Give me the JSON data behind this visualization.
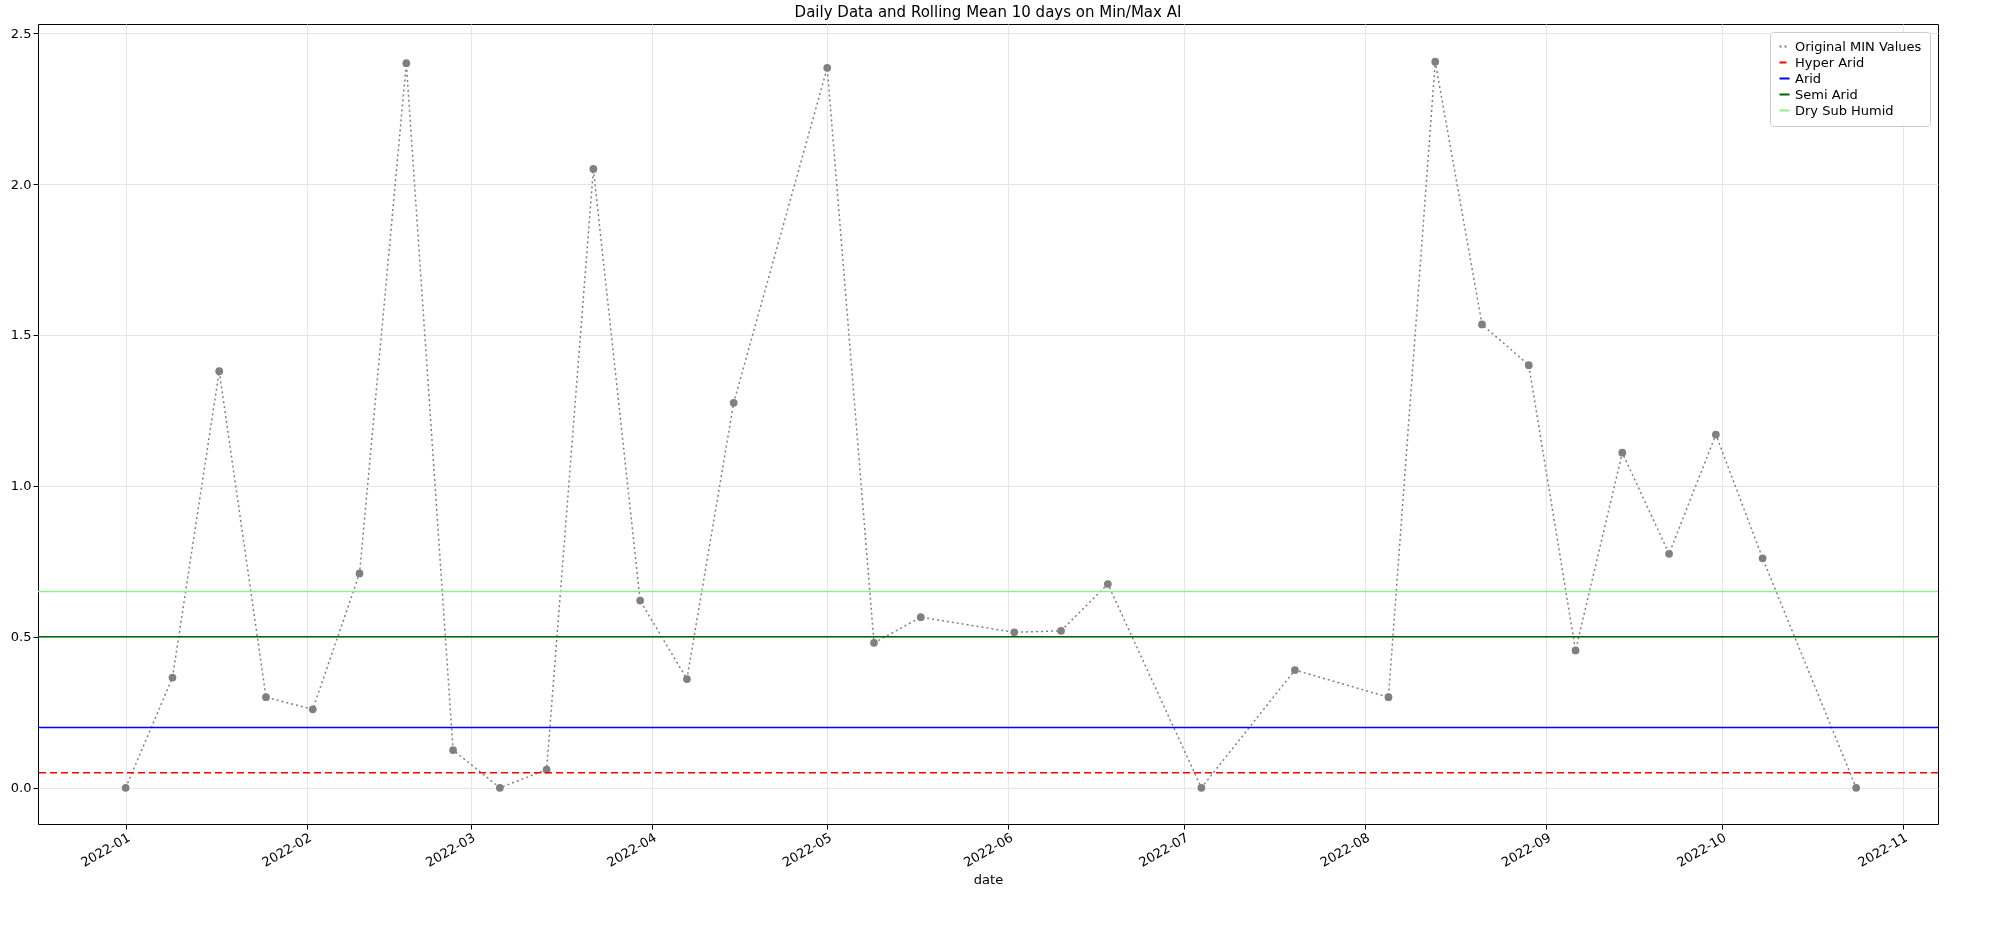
{
  "chart_data": {
    "type": "line",
    "title": "Daily Data and Rolling Mean 10 days on Min/Max AI",
    "xlabel": "date",
    "x": [
      "2022-01-01",
      "2022-01-09",
      "2022-01-17",
      "2022-01-25",
      "2022-02-02",
      "2022-02-10",
      "2022-02-18",
      "2022-02-26",
      "2022-03-06",
      "2022-03-14",
      "2022-03-22",
      "2022-03-30",
      "2022-04-07",
      "2022-04-15",
      "2022-05-01",
      "2022-05-09",
      "2022-05-17",
      "2022-06-02",
      "2022-06-10",
      "2022-06-18",
      "2022-07-04",
      "2022-07-20",
      "2022-08-05",
      "2022-08-13",
      "2022-08-21",
      "2022-08-29",
      "2022-09-06",
      "2022-09-14",
      "2022-09-22",
      "2022-09-30",
      "2022-10-08",
      "2022-10-24"
    ],
    "series": [
      {
        "name": "Original MIN Values",
        "color": "#808080",
        "values": [
          0,
          0.365,
          1.38,
          0.3,
          0.26,
          0.71,
          2.4,
          0.125,
          0,
          0.06,
          2.05,
          0.62,
          0.36,
          1.275,
          2.385,
          0.48,
          0.565,
          0.515,
          0.52,
          0.675,
          0,
          0.39,
          0.3,
          2.405,
          1.535,
          1.4,
          0.455,
          1.11,
          0.775,
          1.17,
          0.76,
          0
        ]
      }
    ],
    "marker": "circle",
    "line_style": "dotted",
    "ref_lines": [
      {
        "axis": "y",
        "value": 0.05,
        "label": "Hyper Arid",
        "color": "#ff0000",
        "line_style": "dashed"
      },
      {
        "axis": "y",
        "value": 0.2,
        "label": "Arid",
        "color": "#0000ff",
        "line_style": "solid"
      },
      {
        "axis": "y",
        "value": 0.5,
        "label": "Semi Arid",
        "color": "#006400",
        "line_style": "solid"
      },
      {
        "axis": "y",
        "value": 0.65,
        "label": "Dry Sub Humid",
        "color": "#90ee90",
        "line_style": "solid"
      }
    ],
    "xlim": [
      "2021-12-17",
      "2022-11-07"
    ],
    "xticks": [
      {
        "value": "2022-01",
        "label": "2022-01"
      },
      {
        "value": "2022-02",
        "label": "2022-02"
      },
      {
        "value": "2022-03",
        "label": "2022-03"
      },
      {
        "value": "2022-04",
        "label": "2022-04"
      },
      {
        "value": "2022-05",
        "label": "2022-05"
      },
      {
        "value": "2022-06",
        "label": "2022-06"
      },
      {
        "value": "2022-07",
        "label": "2022-07"
      },
      {
        "value": "2022-08",
        "label": "2022-08"
      },
      {
        "value": "2022-09",
        "label": "2022-09"
      },
      {
        "value": "2022-10",
        "label": "2022-10"
      },
      {
        "value": "2022-11",
        "label": "2022-11"
      }
    ],
    "ylim": [
      -0.12,
      2.53
    ],
    "yticks": [
      {
        "value": 0,
        "label": "0.0"
      },
      {
        "value": 0.5,
        "label": "0.5"
      },
      {
        "value": 1,
        "label": "1.0"
      },
      {
        "value": 1.5,
        "label": "1.5"
      },
      {
        "value": 2,
        "label": "2.0"
      },
      {
        "value": 2.5,
        "label": "2.5"
      }
    ],
    "grid": true,
    "legend": "top right"
  }
}
